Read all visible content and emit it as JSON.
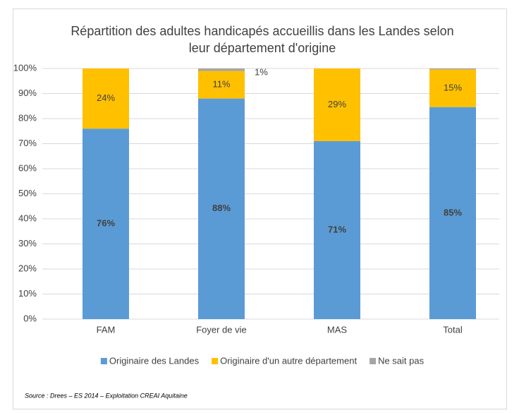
{
  "chart_data": {
    "type": "stacked_bar",
    "title": [
      "Répartition des adultes handicapés accueillis dans les Landes selon",
      "leur département d'origine"
    ],
    "categories": [
      "FAM",
      "Foyer de vie",
      "MAS",
      "Total"
    ],
    "series": [
      {
        "name": "Originaire des Landes",
        "color": "#5b9bd5",
        "values": [
          76,
          88,
          71,
          84.6
        ],
        "value_labels": [
          "76%",
          "88%",
          "71%",
          "85%"
        ]
      },
      {
        "name": "Originaire d'un autre département",
        "color": "#ffc000",
        "values": [
          24,
          11,
          29,
          15
        ],
        "value_labels": [
          "24%",
          "11%",
          "29%",
          "15%"
        ]
      },
      {
        "name": "Ne sait pas",
        "color": "#a5a5a5",
        "values": [
          0,
          1,
          0,
          0.4
        ],
        "value_labels": [
          null,
          "1%",
          null,
          null
        ]
      }
    ],
    "ylim": [
      0,
      100
    ],
    "yticks": [
      {
        "value": 0,
        "label": "0%"
      },
      {
        "value": 10,
        "label": "10%"
      },
      {
        "value": 20,
        "label": "20%"
      },
      {
        "value": 30,
        "label": "30%"
      },
      {
        "value": 40,
        "label": "40%"
      },
      {
        "value": 50,
        "label": "50%"
      },
      {
        "value": 60,
        "label": "60%"
      },
      {
        "value": 70,
        "label": "70%"
      },
      {
        "value": 80,
        "label": "80%"
      },
      {
        "value": 90,
        "label": "90%"
      },
      {
        "value": 100,
        "label": "100%"
      }
    ],
    "grid": true,
    "legend": "bottom",
    "source": "Source : Drees – ES 2014 – Exploitation CREAI Aquitaine"
  }
}
